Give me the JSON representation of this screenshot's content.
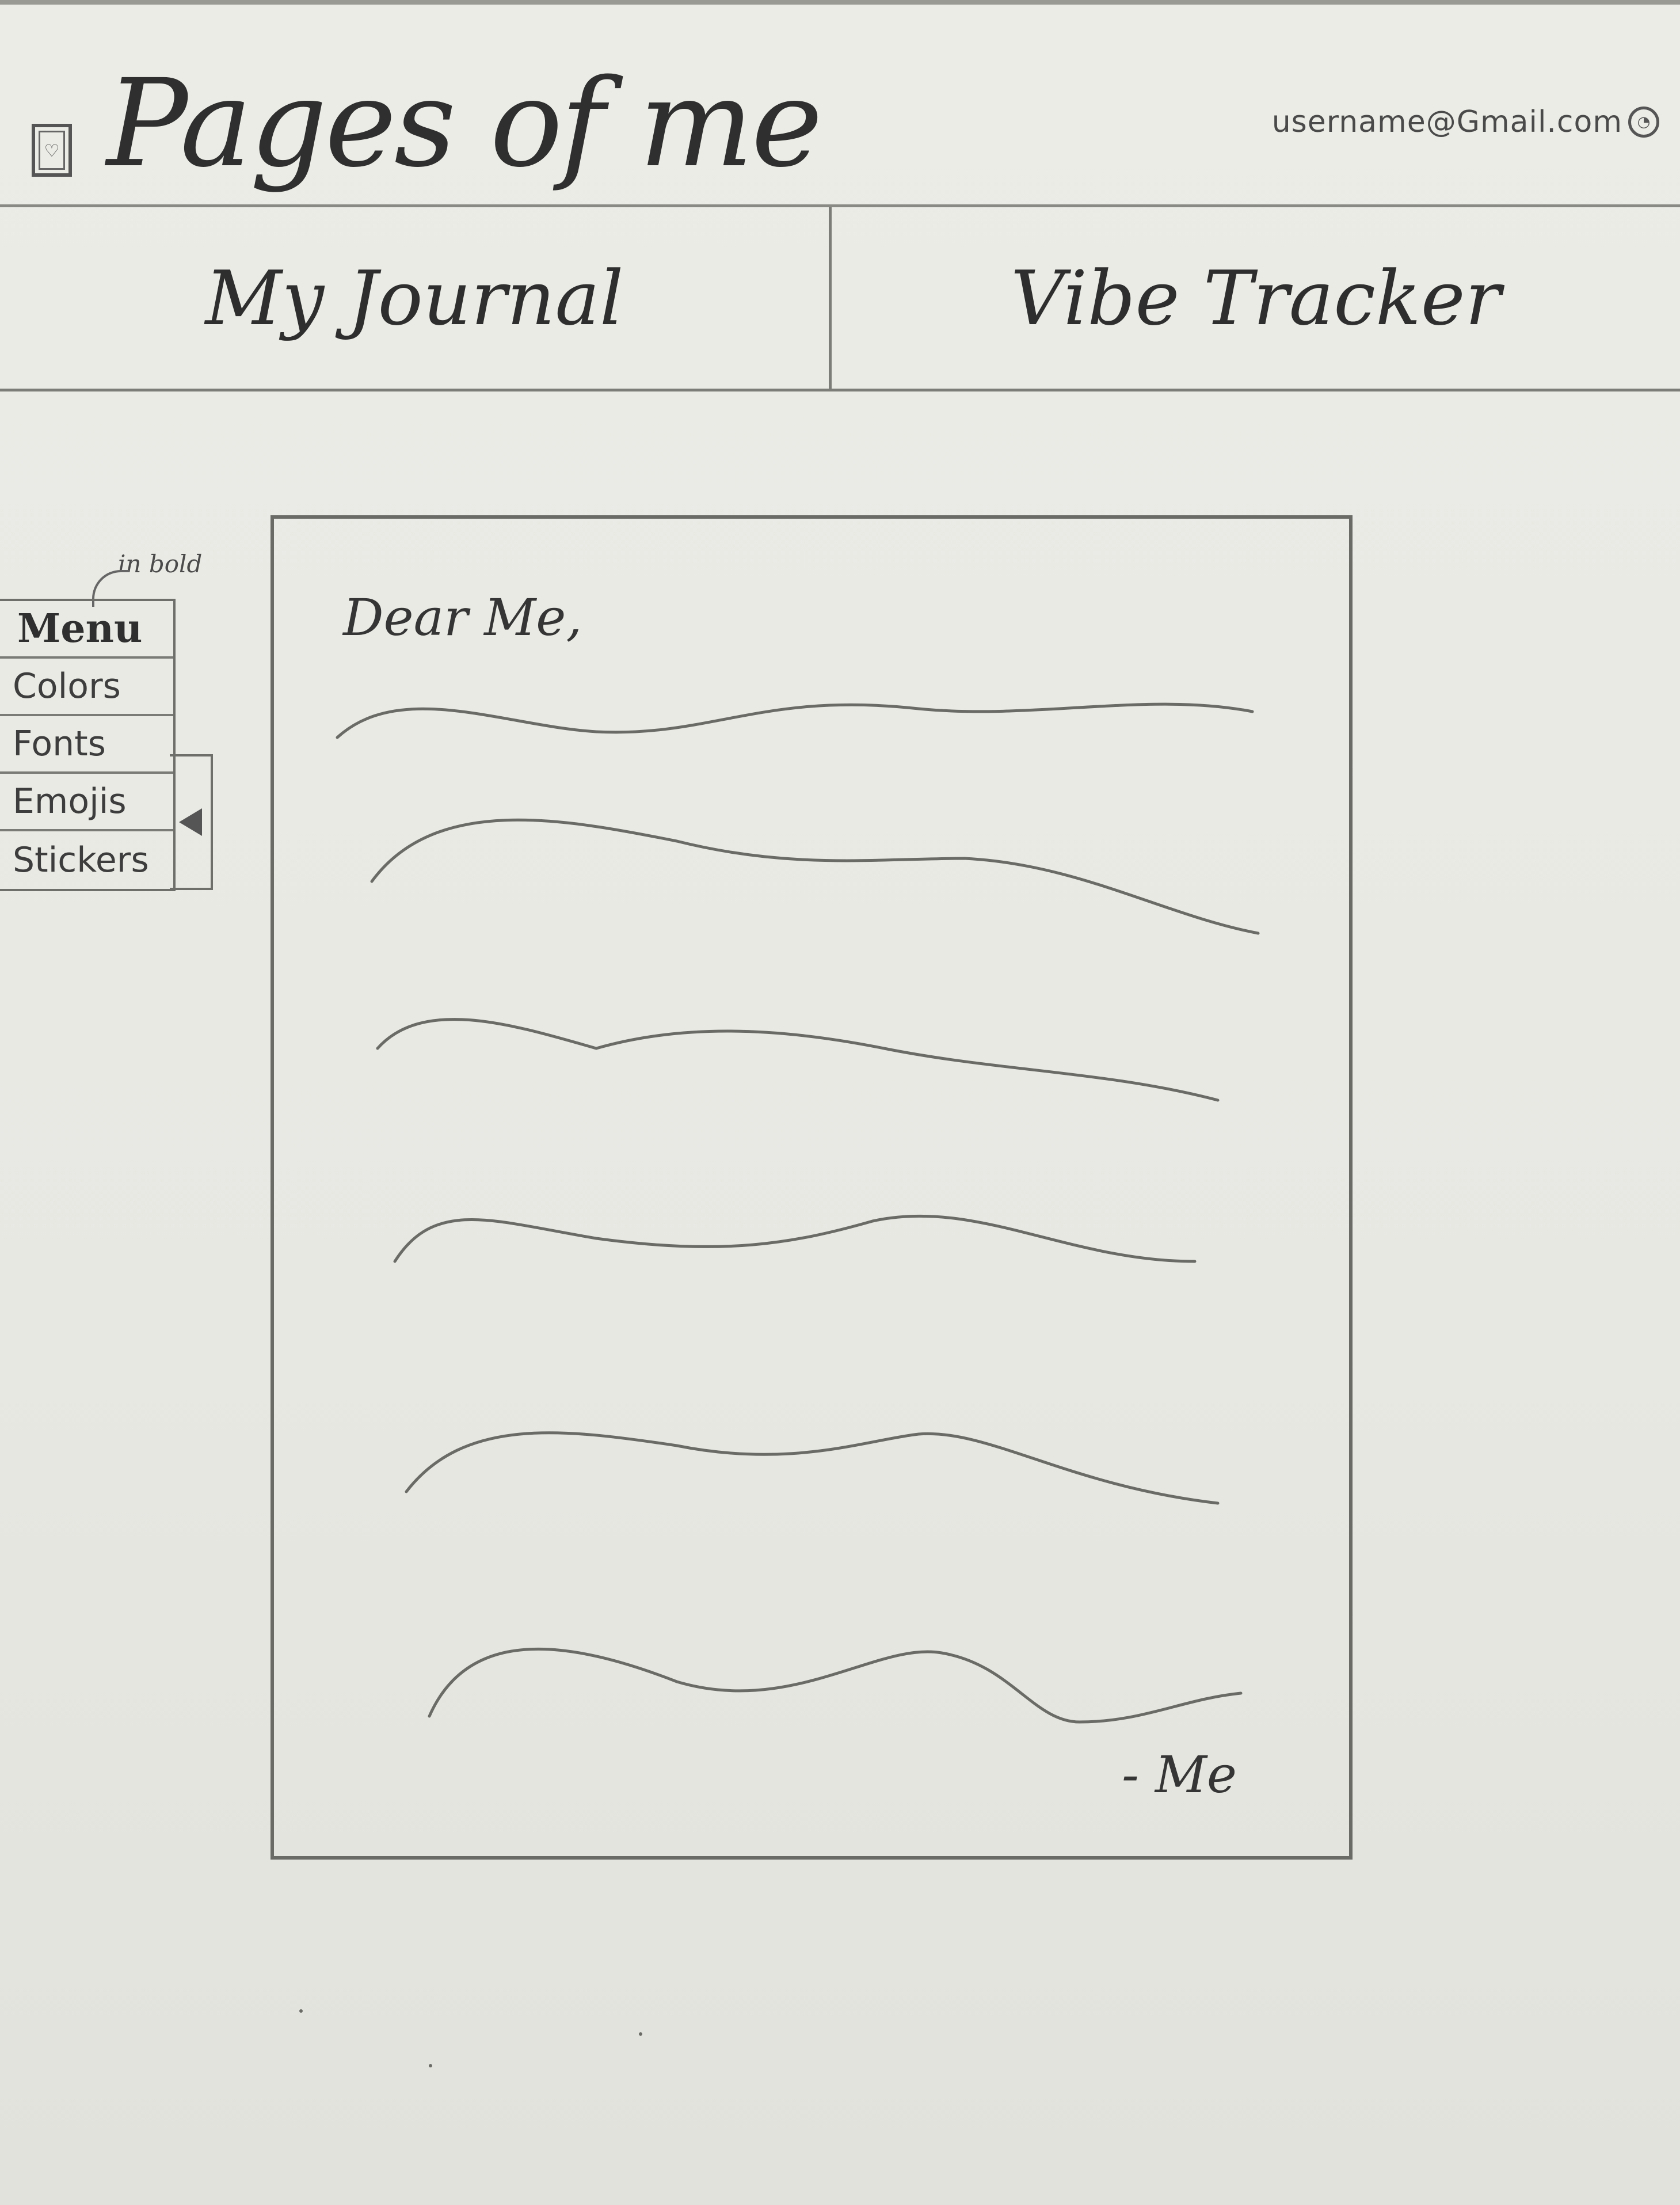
{
  "app": {
    "title": "Pages of me",
    "logo_icon": "journal-book-icon"
  },
  "account": {
    "email": "username@Gmail.com",
    "icon": "account-icon"
  },
  "tabs": [
    {
      "label": "My Journal"
    },
    {
      "label": "Vibe Tracker"
    }
  ],
  "side_menu": {
    "note": "in bold",
    "title": "Menu",
    "items": [
      {
        "label": "Colors"
      },
      {
        "label": "Fonts"
      },
      {
        "label": "Emojis"
      },
      {
        "label": "Stickers"
      }
    ],
    "toggle_icon": "collapse-arrow-icon"
  },
  "journal": {
    "greeting": "Dear Me,",
    "signoff": "- Me"
  }
}
